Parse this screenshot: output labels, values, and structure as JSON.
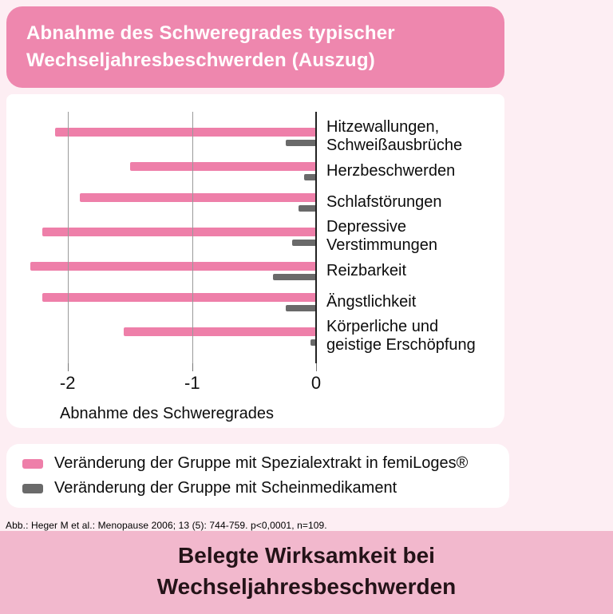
{
  "header": {
    "title_line1": "Abnahme des Schweregrades typischer",
    "title_line2": "Wechseljahresbeschwerden (Auszug)"
  },
  "chart_data": {
    "type": "bar",
    "orientation": "horizontal",
    "title": "Abnahme des Schweregrades typischer Wechseljahresbeschwerden (Auszug)",
    "categories": [
      "Hitzewallungen,\nSchweißausbrüche",
      "Herzbeschwerden",
      "Schlafstörungen",
      "Depressive\nVerstimmungen",
      "Reizbarkeit",
      "Ängstlichkeit",
      "Körperliche und\ngeistige Erschöpfung"
    ],
    "series": [
      {
        "name": "Veränderung der Gruppe mit Spezialextrakt in femiLoges®",
        "color": "#ee7fa9",
        "values": [
          -2.1,
          -1.5,
          -1.9,
          -2.2,
          -2.3,
          -2.2,
          -1.55
        ]
      },
      {
        "name": "Veränderung der Gruppe mit Scheinmedikament",
        "color": "#6a6a6a",
        "values": [
          -0.25,
          -0.1,
          -0.15,
          -0.2,
          -0.35,
          -0.25,
          -0.05
        ]
      }
    ],
    "xlabel": "Abnahme des Schweregrades",
    "xticks": [
      -2,
      -1,
      0
    ],
    "xlim": [
      -2.35,
      0
    ],
    "grid": "vertical gridlines at ticks",
    "legend_position": "below chart in separate card"
  },
  "footnote": "Abb.: Heger M et al.: Menopause 2006; 13 (5): 744-759. p<0,0001, n=109.",
  "banner": {
    "line1": "Belegte Wirksamkeit bei",
    "line2": "Wechseljahresbeschwerden"
  },
  "colors": {
    "page_bg": "#fdeef3",
    "accent_pink": "#ee87ae",
    "bar_pink": "#ee7fa9",
    "bar_gray": "#6a6a6a",
    "banner_bg": "#f2b8cd"
  }
}
